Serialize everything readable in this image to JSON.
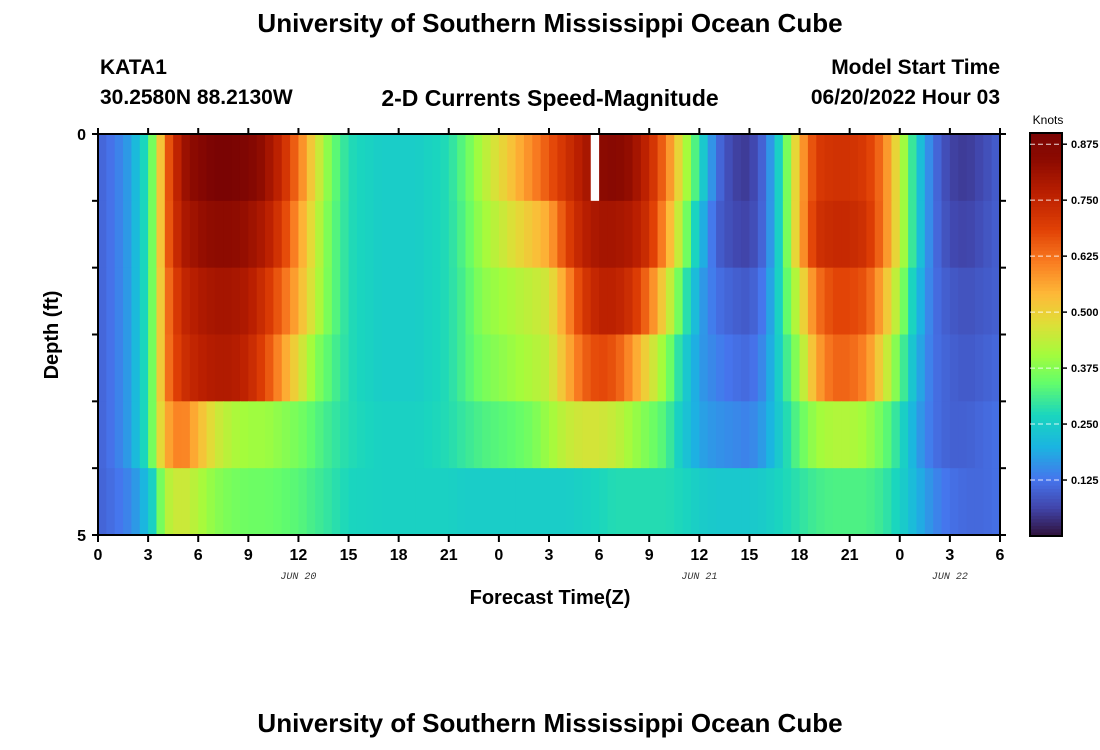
{
  "page": {
    "title": "University of Southern Mississippi Ocean Cube",
    "station_name": "KATA1",
    "station_coords": "30.2580N  88.2130W",
    "plot_title": "2-D Currents Speed-Magnitude",
    "model_start_label": "Model Start Time",
    "model_start_value": "06/20/2022 Hour 03",
    "bottom_title": "University of Southern Mississippi Ocean Cube"
  },
  "chart_data": {
    "type": "heatmap",
    "title": "2-D Currents Speed-Magnitude",
    "xlabel": "Forecast Time(Z)",
    "ylabel": "Depth (ft)",
    "x_range_hours": [
      0,
      54
    ],
    "y_range": [
      0,
      5
    ],
    "y_ticks": [
      "0",
      "5"
    ],
    "x_ticks": [
      {
        "hour": 0,
        "label": "0"
      },
      {
        "hour": 3,
        "label": "3"
      },
      {
        "hour": 6,
        "label": "6"
      },
      {
        "hour": 9,
        "label": "9"
      },
      {
        "hour": 12,
        "label": "12"
      },
      {
        "hour": 15,
        "label": "15"
      },
      {
        "hour": 18,
        "label": "18"
      },
      {
        "hour": 21,
        "label": "21"
      },
      {
        "hour": 24,
        "label": "0"
      },
      {
        "hour": 27,
        "label": "3"
      },
      {
        "hour": 30,
        "label": "6"
      },
      {
        "hour": 33,
        "label": "9"
      },
      {
        "hour": 36,
        "label": "12"
      },
      {
        "hour": 39,
        "label": "15"
      },
      {
        "hour": 42,
        "label": "18"
      },
      {
        "hour": 45,
        "label": "21"
      },
      {
        "hour": 48,
        "label": "0"
      },
      {
        "hour": 51,
        "label": "3"
      },
      {
        "hour": 54,
        "label": "6"
      }
    ],
    "date_labels": [
      {
        "hour": 12,
        "label": "JUN 20"
      },
      {
        "hour": 36,
        "label": "JUN 21"
      },
      {
        "hour": 51,
        "label": "JUN 22"
      }
    ],
    "colorbar": {
      "label": "Knots",
      "min": 0,
      "max": 0.9,
      "ticks": [
        "0.125",
        "0.250",
        "0.375",
        "0.500",
        "0.625",
        "0.750",
        "0.875"
      ]
    },
    "missing_cells": [
      {
        "hour": 29.5,
        "layer": 0
      }
    ],
    "time_profile_knots": {
      "hours": [
        0,
        1,
        2,
        3,
        3.5,
        4,
        5,
        6,
        7,
        8,
        9,
        10,
        11,
        12,
        13,
        14,
        15,
        17,
        19,
        21,
        22,
        23,
        24,
        25,
        26,
        27,
        28,
        29,
        30,
        31,
        32,
        33,
        34,
        35,
        36,
        37,
        38,
        39,
        40,
        41,
        42,
        43,
        44,
        45,
        46,
        47,
        48,
        49,
        50,
        51,
        52,
        53,
        54
      ],
      "layers": [
        [
          0.1,
          0.13,
          0.18,
          0.3,
          0.42,
          0.62,
          0.8,
          0.86,
          0.9,
          0.9,
          0.88,
          0.82,
          0.74,
          0.62,
          0.48,
          0.35,
          0.28,
          0.25,
          0.25,
          0.28,
          0.34,
          0.42,
          0.48,
          0.54,
          0.6,
          0.66,
          0.72,
          0.78,
          0.84,
          0.86,
          0.82,
          0.74,
          0.62,
          0.45,
          0.28,
          0.12,
          0.06,
          0.05,
          0.12,
          0.3,
          0.55,
          0.7,
          0.72,
          0.72,
          0.7,
          0.62,
          0.45,
          0.25,
          0.12,
          0.06,
          0.05,
          0.07,
          0.1
        ],
        [
          0.1,
          0.13,
          0.18,
          0.3,
          0.42,
          0.62,
          0.78,
          0.82,
          0.84,
          0.84,
          0.82,
          0.78,
          0.7,
          0.58,
          0.45,
          0.34,
          0.28,
          0.25,
          0.25,
          0.28,
          0.33,
          0.4,
          0.44,
          0.48,
          0.52,
          0.56,
          0.68,
          0.76,
          0.8,
          0.8,
          0.78,
          0.72,
          0.58,
          0.4,
          0.22,
          0.1,
          0.07,
          0.06,
          0.12,
          0.3,
          0.55,
          0.72,
          0.74,
          0.74,
          0.72,
          0.62,
          0.45,
          0.25,
          0.12,
          0.07,
          0.06,
          0.08,
          0.1
        ],
        [
          0.1,
          0.13,
          0.18,
          0.3,
          0.42,
          0.6,
          0.74,
          0.78,
          0.8,
          0.8,
          0.78,
          0.72,
          0.64,
          0.55,
          0.44,
          0.34,
          0.28,
          0.25,
          0.25,
          0.28,
          0.32,
          0.38,
          0.4,
          0.42,
          0.44,
          0.46,
          0.58,
          0.7,
          0.76,
          0.76,
          0.72,
          0.62,
          0.48,
          0.32,
          0.18,
          0.12,
          0.1,
          0.09,
          0.14,
          0.3,
          0.46,
          0.62,
          0.68,
          0.68,
          0.66,
          0.55,
          0.4,
          0.22,
          0.12,
          0.09,
          0.08,
          0.09,
          0.1
        ],
        [
          0.1,
          0.13,
          0.18,
          0.3,
          0.42,
          0.6,
          0.72,
          0.76,
          0.78,
          0.78,
          0.75,
          0.68,
          0.58,
          0.48,
          0.38,
          0.32,
          0.28,
          0.25,
          0.25,
          0.28,
          0.32,
          0.36,
          0.38,
          0.4,
          0.42,
          0.44,
          0.54,
          0.64,
          0.68,
          0.66,
          0.58,
          0.48,
          0.38,
          0.26,
          0.17,
          0.14,
          0.12,
          0.11,
          0.16,
          0.28,
          0.4,
          0.56,
          0.64,
          0.64,
          0.6,
          0.48,
          0.34,
          0.2,
          0.12,
          0.1,
          0.09,
          0.1,
          0.11
        ],
        [
          0.1,
          0.13,
          0.18,
          0.3,
          0.42,
          0.55,
          0.62,
          0.54,
          0.46,
          0.42,
          0.4,
          0.4,
          0.38,
          0.36,
          0.33,
          0.3,
          0.28,
          0.26,
          0.26,
          0.28,
          0.3,
          0.32,
          0.33,
          0.34,
          0.36,
          0.4,
          0.44,
          0.46,
          0.46,
          0.44,
          0.4,
          0.36,
          0.32,
          0.24,
          0.18,
          0.16,
          0.15,
          0.14,
          0.18,
          0.26,
          0.34,
          0.4,
          0.42,
          0.42,
          0.4,
          0.35,
          0.28,
          0.18,
          0.12,
          0.1,
          0.1,
          0.11,
          0.12
        ],
        [
          0.1,
          0.12,
          0.15,
          0.22,
          0.3,
          0.42,
          0.46,
          0.42,
          0.38,
          0.36,
          0.35,
          0.35,
          0.34,
          0.33,
          0.31,
          0.29,
          0.27,
          0.26,
          0.26,
          0.26,
          0.25,
          0.25,
          0.25,
          0.25,
          0.25,
          0.25,
          0.25,
          0.26,
          0.27,
          0.28,
          0.28,
          0.28,
          0.28,
          0.27,
          0.25,
          0.24,
          0.24,
          0.24,
          0.25,
          0.27,
          0.29,
          0.31,
          0.32,
          0.32,
          0.32,
          0.3,
          0.26,
          0.2,
          0.15,
          0.12,
          0.11,
          0.11,
          0.12
        ]
      ]
    }
  }
}
